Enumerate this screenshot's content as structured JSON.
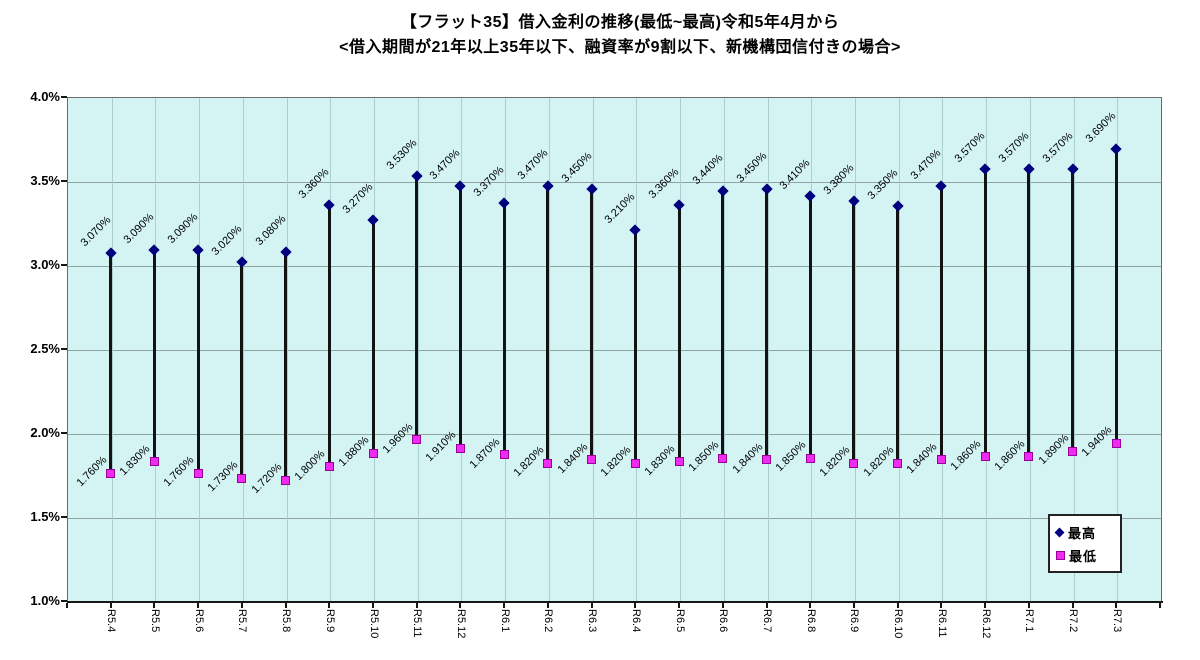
{
  "title": {
    "line1": "【フラット35】借入金利の推移(最低~最高)令和5年4月から",
    "line2": "<借入期間が21年以上35年以下、融資率が9割以下、新機構団信付きの場合>"
  },
  "colors": {
    "plot_bg": "#d4f4f4",
    "grid_h": "#8fa3a3",
    "grid_v": "#a9cfcf",
    "hilo_line": "#121212",
    "max_marker": "#00007e",
    "min_marker_fill": "#f02bf0",
    "min_marker_border": "#990099",
    "axis": "#161616"
  },
  "y_axis": {
    "ticks": [
      "4.0%",
      "3.5%",
      "3.0%",
      "2.5%",
      "2.0%",
      "1.5%",
      "1.0%"
    ],
    "max": 4.0,
    "min": 1.0,
    "step": 0.5
  },
  "legend": {
    "max_label": "最高",
    "min_label": "最低"
  },
  "chart_data": {
    "type": "scatter",
    "subtype": "high-low range with markers",
    "title": "【フラット35】借入金利の推移(最低~最高)令和5年4月から",
    "xlabel": "",
    "ylabel": "",
    "ylim": [
      1.0,
      4.0
    ],
    "grid": true,
    "legend_position": "inside-bottom-right",
    "value_format": "0.000%",
    "categories": [
      "R5.4",
      "R5.5",
      "R5.6",
      "R5.7",
      "R5.8",
      "R5.9",
      "R5.10",
      "R5.11",
      "R5.12",
      "R6.1",
      "R6.2",
      "R6.3",
      "R6.4",
      "R6.5",
      "R6.6",
      "R6.7",
      "R6.8",
      "R6.9",
      "R6.10",
      "R6.11",
      "R6.12",
      "R7.1",
      "R7.2",
      "R7.3"
    ],
    "series": [
      {
        "name": "最高",
        "marker": "diamond",
        "color": "#00007e",
        "values": [
          3.07,
          3.09,
          3.09,
          3.02,
          3.08,
          3.36,
          3.27,
          3.53,
          3.47,
          3.37,
          3.47,
          3.45,
          3.21,
          3.36,
          3.44,
          3.45,
          3.41,
          3.38,
          3.35,
          3.47,
          3.57,
          3.57,
          3.57,
          3.69
        ]
      },
      {
        "name": "最低",
        "marker": "square",
        "color": "#f02bf0",
        "values": [
          1.76,
          1.83,
          1.76,
          1.73,
          1.72,
          1.8,
          1.88,
          1.96,
          1.91,
          1.87,
          1.82,
          1.84,
          1.82,
          1.83,
          1.85,
          1.84,
          1.85,
          1.82,
          1.82,
          1.84,
          1.86,
          1.86,
          1.89,
          1.94
        ]
      }
    ]
  }
}
